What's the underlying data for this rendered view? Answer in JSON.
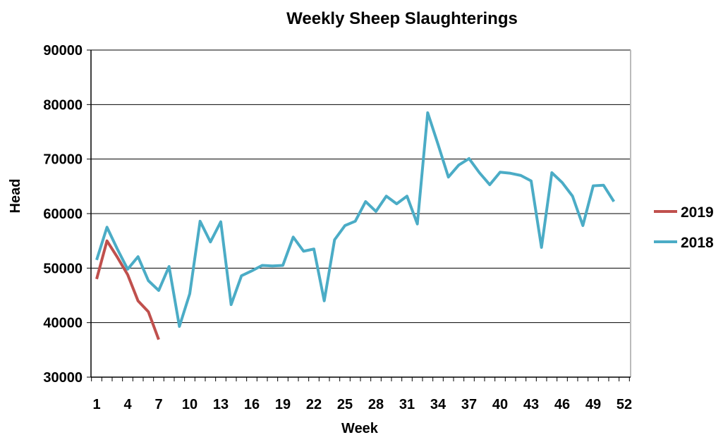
{
  "chart_data": {
    "type": "line",
    "title": "Weekly Sheep Slaughterings",
    "xlabel": "Week",
    "ylabel": "Head",
    "ylim": [
      30000,
      90000
    ],
    "yticks": [
      "30000",
      "40000",
      "50000",
      "60000",
      "70000",
      "80000",
      "90000"
    ],
    "xlim": [
      1,
      52
    ],
    "xticks": [
      "1",
      "4",
      "7",
      "10",
      "13",
      "16",
      "19",
      "22",
      "25",
      "28",
      "31",
      "34",
      "37",
      "40",
      "43",
      "46",
      "49",
      "52"
    ],
    "grid": true,
    "legend_position": "right",
    "series": [
      {
        "name": "2019",
        "color": "#c0504d",
        "x": [
          1,
          2,
          3,
          4,
          5,
          6,
          7
        ],
        "values": [
          48000,
          55000,
          52000,
          48800,
          44000,
          42000,
          36900
        ]
      },
      {
        "name": "2018",
        "color": "#4bacc6",
        "x": [
          1,
          2,
          3,
          4,
          5,
          6,
          7,
          8,
          9,
          10,
          11,
          12,
          13,
          14,
          15,
          16,
          17,
          18,
          19,
          20,
          21,
          22,
          23,
          24,
          25,
          26,
          27,
          28,
          29,
          30,
          31,
          32,
          33,
          34,
          35,
          36,
          37,
          38,
          39,
          40,
          41,
          42,
          43,
          44,
          45,
          46,
          47,
          48,
          49,
          50,
          51
        ],
        "values": [
          51500,
          57500,
          53500,
          49800,
          52100,
          47700,
          45900,
          50300,
          39300,
          45300,
          58600,
          54800,
          58500,
          43300,
          48600,
          49500,
          50500,
          50400,
          50500,
          55700,
          53100,
          53500,
          44000,
          55200,
          57800,
          58600,
          62200,
          60400,
          63200,
          61800,
          63200,
          58100,
          78500,
          72700,
          66700,
          68900,
          70100,
          67500,
          65300,
          67600,
          67400,
          67000,
          66000,
          53800,
          67500,
          65700,
          63200,
          57800,
          65100,
          65200,
          62200
        ]
      }
    ]
  }
}
